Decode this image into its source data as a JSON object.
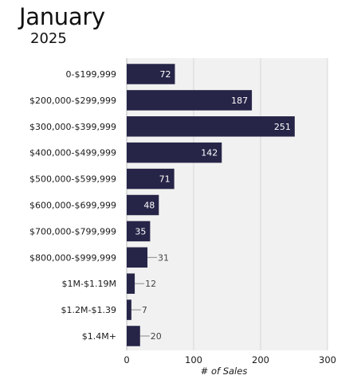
{
  "header": {
    "title": "January",
    "subtitle": "2025"
  },
  "colors": {
    "bar": "#262548",
    "plot_bg": "#f1f1f1",
    "grid": "#d6d6d6"
  },
  "chart_data": {
    "type": "bar",
    "orientation": "horizontal",
    "categories": [
      "0-$199,999",
      "$200,000-$299,999",
      "$300,000-$399,999",
      "$400,000-$499,999",
      "$500,000-$599,999",
      "$600,000-$699,999",
      "$700,000-$799,999",
      "$800,000-$999,999",
      "$1M-$1.19M",
      "$1.2M-$1.39",
      "$1.4M+"
    ],
    "values": [
      72,
      187,
      251,
      142,
      71,
      48,
      35,
      31,
      12,
      7,
      20
    ],
    "xlabel": "# of Sales",
    "ylabel": "",
    "xlim": [
      0,
      300
    ],
    "xticks": [
      0,
      100,
      200,
      300
    ],
    "grid": true
  }
}
